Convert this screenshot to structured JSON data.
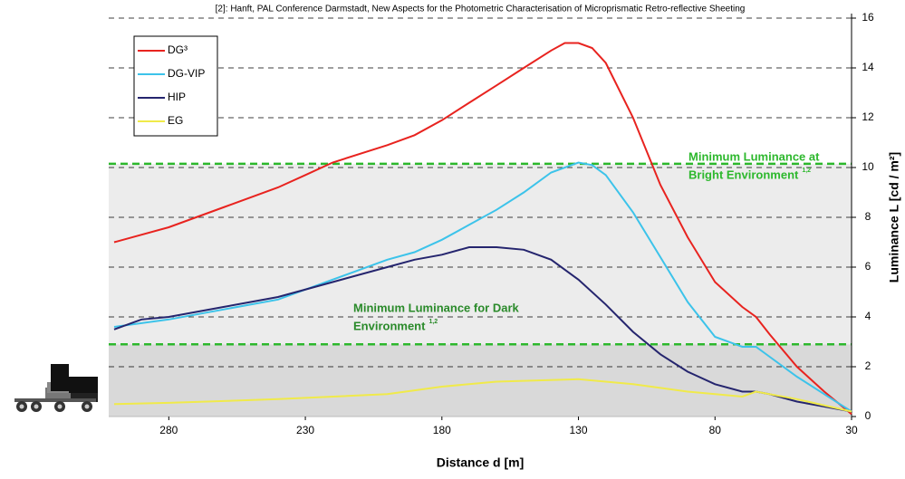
{
  "chart_data": {
    "type": "line",
    "source": "[2]: Hanft, PAL Conference Darmstadt, New Aspects for the Photometric Characterisation of Microprismatic Retro-reflective Sheeting",
    "x_label": "Distance d [m]",
    "y_label": "Luminance L [cd / m²]",
    "xlim": [
      302,
      30
    ],
    "ylim": [
      0,
      16
    ],
    "xticks": [
      280,
      230,
      180,
      130,
      80,
      30
    ],
    "yticks": [
      0,
      2,
      4,
      6,
      8,
      10,
      12,
      14,
      16
    ],
    "grid": true,
    "legend": "top-left",
    "band_colors": [
      "#d9d9d9",
      "#ececec"
    ],
    "threshold_color": "#2db82d",
    "thresholds": [
      {
        "value": 10.15,
        "lines": [
          "Minimum Luminance at",
          "Bright Environment"
        ],
        "sup": "1,2"
      },
      {
        "value": 2.9,
        "lines": [
          "Minimum Luminance for Dark",
          "Environment"
        ],
        "sup": "1,2"
      }
    ],
    "series": [
      {
        "name": "DG³",
        "color": "#e8231f",
        "x": [
          300,
          280,
          260,
          240,
          230,
          220,
          200,
          190,
          180,
          170,
          160,
          150,
          140,
          135,
          130,
          125,
          120,
          110,
          100,
          90,
          80,
          70,
          65,
          60,
          50,
          40,
          30
        ],
        "values": [
          7.0,
          7.6,
          8.4,
          9.2,
          9.7,
          10.2,
          10.9,
          11.3,
          11.9,
          12.6,
          13.3,
          14.0,
          14.7,
          15.0,
          15.0,
          14.8,
          14.2,
          12.0,
          9.3,
          7.2,
          5.4,
          4.4,
          4.0,
          3.3,
          2.0,
          1.0,
          0.1
        ]
      },
      {
        "name": "DG-VIP",
        "color": "#3cc3ea",
        "x": [
          300,
          280,
          260,
          240,
          220,
          200,
          190,
          180,
          170,
          160,
          150,
          140,
          130,
          125,
          120,
          110,
          100,
          90,
          80,
          70,
          65,
          60,
          50,
          40,
          30
        ],
        "values": [
          3.6,
          3.9,
          4.3,
          4.7,
          5.5,
          6.3,
          6.6,
          7.1,
          7.7,
          8.3,
          9.0,
          9.8,
          10.2,
          10.1,
          9.7,
          8.2,
          6.4,
          4.6,
          3.2,
          2.8,
          2.8,
          2.4,
          1.6,
          0.9,
          0.2
        ]
      },
      {
        "name": "HIP",
        "color": "#25256e",
        "x": [
          300,
          290,
          280,
          260,
          250,
          240,
          220,
          200,
          190,
          180,
          170,
          160,
          150,
          140,
          130,
          120,
          110,
          100,
          90,
          80,
          70,
          65,
          60,
          50,
          40,
          30
        ],
        "values": [
          3.5,
          3.9,
          4.0,
          4.4,
          4.6,
          4.8,
          5.4,
          6.0,
          6.3,
          6.5,
          6.8,
          6.8,
          6.7,
          6.3,
          5.5,
          4.5,
          3.4,
          2.5,
          1.8,
          1.3,
          1.0,
          1.0,
          0.9,
          0.6,
          0.4,
          0.2
        ]
      },
      {
        "name": "EG",
        "color": "#f0ea4a",
        "x": [
          300,
          280,
          240,
          200,
          180,
          160,
          130,
          110,
          90,
          70,
          65,
          50,
          30
        ],
        "values": [
          0.5,
          0.55,
          0.7,
          0.9,
          1.2,
          1.4,
          1.5,
          1.3,
          1.0,
          0.8,
          1.0,
          0.7,
          0.2
        ]
      }
    ]
  }
}
